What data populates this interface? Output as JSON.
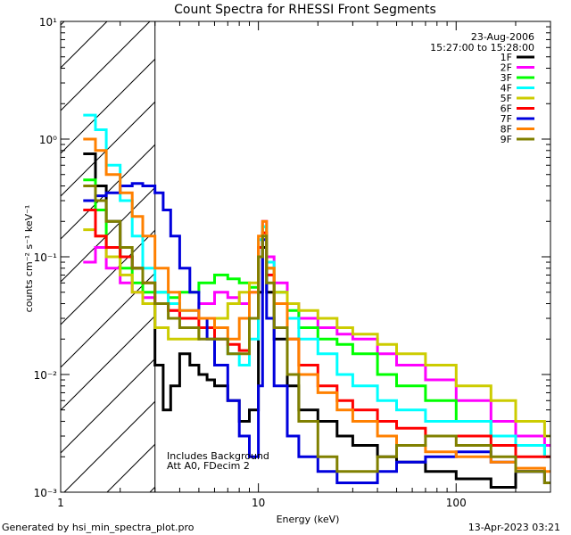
{
  "chart_data": {
    "type": "line",
    "title": "Count Spectra for RHESSI Front Segments",
    "xlabel": "Energy (keV)",
    "ylabel": "counts cm⁻² s⁻¹ keV⁻¹",
    "xscale": "log",
    "yscale": "log",
    "xlim": [
      1,
      300
    ],
    "ylim": [
      0.001,
      10
    ],
    "x_ticks": [
      {
        "value": 1,
        "label": "1"
      },
      {
        "value": 10,
        "label": "10"
      },
      {
        "value": 100,
        "label": "100"
      }
    ],
    "y_ticks": [
      {
        "value": 10,
        "label": "10¹"
      },
      {
        "value": 1,
        "label": "10⁰"
      },
      {
        "value": 0.1,
        "label": "10⁻¹"
      },
      {
        "value": 0.01,
        "label": "10⁻²"
      },
      {
        "value": 0.001,
        "label": "10⁻³"
      }
    ],
    "excluded_region": {
      "from": 1,
      "to": 3
    },
    "legend_position": "top-right",
    "date": "23-Aug-2006",
    "time_range": "15:27:00 to 15:28:00",
    "annotations": [
      "Includes Background",
      "Att A0, FDecim 2"
    ],
    "series": [
      {
        "name": "1F",
        "color": "#000000",
        "x": [
          1.3,
          1.5,
          1.7,
          2.0,
          2.3,
          2.6,
          3.0,
          3.3,
          3.6,
          4.0,
          4.5,
          5.0,
          5.5,
          6.0,
          7.0,
          8.0,
          9.0,
          10.0,
          10.5,
          11.0,
          12.0,
          14.0,
          16.0,
          20.0,
          25.0,
          30.0,
          40.0,
          50.0,
          70.0,
          100.0,
          150.0,
          200.0,
          280.0
        ],
        "values": [
          0.75,
          0.4,
          0.2,
          0.1,
          0.08,
          0.04,
          0.012,
          0.005,
          0.008,
          0.015,
          0.012,
          0.01,
          0.009,
          0.008,
          0.006,
          0.004,
          0.005,
          0.05,
          0.12,
          0.05,
          0.02,
          0.008,
          0.005,
          0.004,
          0.003,
          0.0025,
          0.002,
          0.0018,
          0.0015,
          0.0013,
          0.0011,
          0.0015,
          0.0012
        ]
      },
      {
        "name": "2F",
        "color": "#ff00ff",
        "x": [
          1.3,
          1.5,
          1.7,
          2.0,
          2.3,
          2.6,
          3.0,
          3.5,
          4.0,
          5.0,
          6.0,
          7.0,
          8.0,
          9.0,
          10.0,
          10.5,
          11.0,
          12.0,
          14.0,
          16.0,
          20.0,
          25.0,
          30.0,
          40.0,
          50.0,
          70.0,
          100.0,
          150.0,
          200.0,
          280.0
        ],
        "values": [
          0.09,
          0.12,
          0.08,
          0.06,
          0.05,
          0.045,
          0.04,
          0.035,
          0.03,
          0.04,
          0.05,
          0.045,
          0.04,
          0.05,
          0.12,
          0.2,
          0.1,
          0.06,
          0.04,
          0.03,
          0.025,
          0.022,
          0.02,
          0.015,
          0.012,
          0.009,
          0.006,
          0.004,
          0.003,
          0.0025
        ]
      },
      {
        "name": "3F",
        "color": "#00ff00",
        "x": [
          1.3,
          1.5,
          1.7,
          2.0,
          2.3,
          2.6,
          3.0,
          3.5,
          4.0,
          5.0,
          6.0,
          7.0,
          8.0,
          9.0,
          10.0,
          10.5,
          11.0,
          12.0,
          14.0,
          16.0,
          20.0,
          25.0,
          30.0,
          40.0,
          50.0,
          70.0,
          100.0,
          150.0,
          200.0,
          280.0
        ],
        "values": [
          0.45,
          0.25,
          0.12,
          0.08,
          0.06,
          0.05,
          0.05,
          0.045,
          0.05,
          0.06,
          0.07,
          0.065,
          0.06,
          0.055,
          0.1,
          0.18,
          0.08,
          0.05,
          0.035,
          0.025,
          0.02,
          0.018,
          0.015,
          0.01,
          0.008,
          0.006,
          0.004,
          0.003,
          0.0025,
          0.002
        ]
      },
      {
        "name": "4F",
        "color": "#00ffff",
        "x": [
          1.3,
          1.5,
          1.7,
          2.0,
          2.3,
          2.6,
          3.0,
          3.5,
          4.0,
          5.0,
          6.0,
          7.0,
          8.0,
          9.0,
          10.0,
          10.5,
          11.0,
          12.0,
          14.0,
          16.0,
          20.0,
          25.0,
          30.0,
          40.0,
          50.0,
          70.0,
          100.0,
          150.0,
          200.0,
          280.0
        ],
        "values": [
          1.6,
          1.2,
          0.6,
          0.3,
          0.15,
          0.08,
          0.05,
          0.04,
          0.035,
          0.03,
          0.02,
          0.015,
          0.012,
          0.02,
          0.14,
          0.18,
          0.09,
          0.05,
          0.03,
          0.02,
          0.015,
          0.01,
          0.008,
          0.006,
          0.005,
          0.004,
          0.004,
          0.003,
          0.0025,
          0.002
        ]
      },
      {
        "name": "5F",
        "color": "#cccc00",
        "x": [
          1.3,
          1.5,
          1.7,
          2.0,
          2.3,
          2.6,
          3.0,
          3.5,
          4.0,
          5.0,
          6.0,
          7.0,
          8.0,
          9.0,
          10.0,
          10.5,
          11.0,
          12.0,
          14.0,
          16.0,
          20.0,
          25.0,
          30.0,
          40.0,
          50.0,
          70.0,
          100.0,
          150.0,
          200.0,
          280.0
        ],
        "values": [
          0.17,
          0.15,
          0.1,
          0.07,
          0.05,
          0.04,
          0.025,
          0.02,
          0.02,
          0.025,
          0.03,
          0.04,
          0.05,
          0.06,
          0.1,
          0.16,
          0.08,
          0.05,
          0.04,
          0.035,
          0.03,
          0.025,
          0.022,
          0.018,
          0.015,
          0.012,
          0.008,
          0.006,
          0.004,
          0.003
        ]
      },
      {
        "name": "6F",
        "color": "#ff0000",
        "x": [
          1.3,
          1.5,
          1.7,
          2.0,
          2.3,
          2.6,
          3.0,
          3.5,
          4.0,
          5.0,
          6.0,
          7.0,
          8.0,
          9.0,
          10.0,
          10.5,
          11.0,
          12.0,
          14.0,
          16.0,
          20.0,
          25.0,
          30.0,
          40.0,
          50.0,
          70.0,
          100.0,
          150.0,
          200.0,
          280.0
        ],
        "values": [
          0.25,
          0.15,
          0.12,
          0.1,
          0.08,
          0.06,
          0.04,
          0.035,
          0.03,
          0.025,
          0.02,
          0.018,
          0.016,
          0.03,
          0.12,
          0.16,
          0.07,
          0.04,
          0.02,
          0.012,
          0.008,
          0.006,
          0.005,
          0.004,
          0.0035,
          0.003,
          0.003,
          0.0025,
          0.002,
          0.002
        ]
      },
      {
        "name": "7F",
        "color": "#0000dd",
        "x": [
          1.3,
          1.5,
          1.7,
          2.0,
          2.3,
          2.6,
          3.0,
          3.3,
          3.6,
          4.0,
          4.5,
          5.0,
          5.5,
          6.0,
          7.0,
          8.0,
          9.0,
          10.0,
          10.5,
          11.0,
          12.0,
          14.0,
          16.0,
          20.0,
          25.0,
          30.0,
          40.0,
          50.0,
          70.0,
          100.0,
          150.0,
          200.0,
          280.0
        ],
        "values": [
          0.3,
          0.33,
          0.35,
          0.4,
          0.42,
          0.4,
          0.35,
          0.25,
          0.15,
          0.08,
          0.05,
          0.03,
          0.02,
          0.012,
          0.006,
          0.003,
          0.002,
          0.008,
          0.14,
          0.03,
          0.008,
          0.003,
          0.002,
          0.0015,
          0.0012,
          0.0012,
          0.0015,
          0.0018,
          0.002,
          0.0022,
          0.0018,
          0.0015,
          0.0012
        ]
      },
      {
        "name": "8F",
        "color": "#ff8000",
        "x": [
          1.3,
          1.5,
          1.7,
          2.0,
          2.3,
          2.6,
          3.0,
          3.5,
          4.0,
          5.0,
          6.0,
          7.0,
          8.0,
          9.0,
          10.0,
          10.5,
          11.0,
          12.0,
          14.0,
          16.0,
          20.0,
          25.0,
          30.0,
          40.0,
          50.0,
          70.0,
          100.0,
          150.0,
          200.0,
          280.0
        ],
        "values": [
          1.0,
          0.8,
          0.5,
          0.35,
          0.22,
          0.15,
          0.08,
          0.05,
          0.035,
          0.03,
          0.025,
          0.02,
          0.03,
          0.05,
          0.15,
          0.2,
          0.08,
          0.04,
          0.02,
          0.01,
          0.007,
          0.005,
          0.004,
          0.003,
          0.0025,
          0.0022,
          0.002,
          0.0018,
          0.0016,
          0.0015
        ]
      },
      {
        "name": "9F",
        "color": "#808000",
        "x": [
          1.3,
          1.5,
          1.7,
          2.0,
          2.3,
          2.6,
          3.0,
          3.5,
          4.0,
          5.0,
          6.0,
          7.0,
          8.0,
          9.0,
          10.0,
          10.5,
          11.0,
          12.0,
          14.0,
          16.0,
          20.0,
          25.0,
          30.0,
          40.0,
          50.0,
          70.0,
          100.0,
          150.0,
          200.0,
          280.0
        ],
        "values": [
          0.4,
          0.3,
          0.2,
          0.12,
          0.08,
          0.06,
          0.04,
          0.03,
          0.025,
          0.02,
          0.02,
          0.015,
          0.015,
          0.03,
          0.1,
          0.15,
          0.06,
          0.025,
          0.01,
          0.004,
          0.002,
          0.0015,
          0.0015,
          0.002,
          0.0025,
          0.003,
          0.0025,
          0.002,
          0.0015,
          0.0012
        ]
      }
    ]
  },
  "footer": {
    "generated_by": "Generated by hsi_min_spectra_plot.pro",
    "timestamp": "13-Apr-2023 03:21"
  }
}
